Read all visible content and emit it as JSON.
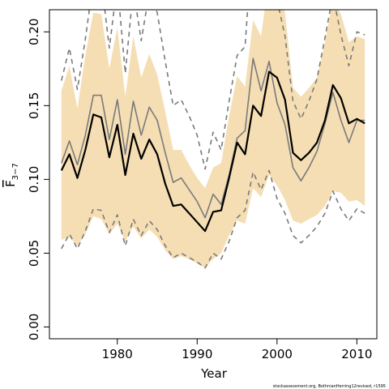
{
  "chart_data": {
    "type": "line",
    "xlabel": "Year",
    "ylabel_main": "F",
    "ylabel_sub": "3−7",
    "xlim": [
      1971.5,
      2012.5
    ],
    "ylim": [
      -0.008,
      0.215
    ],
    "xticks": [
      1980,
      1990,
      2000,
      2010
    ],
    "xtick_labels": [
      "1980",
      "1990",
      "2000",
      "2010"
    ],
    "yticks": [
      0.0,
      0.05,
      0.1,
      0.15,
      0.2
    ],
    "ytick_labels": [
      "0.00",
      "0.05",
      "0.10",
      "0.15",
      "0.20"
    ],
    "x": [
      1973,
      1974,
      1975,
      1976,
      1977,
      1978,
      1979,
      1980,
      1981,
      1982,
      1983,
      1984,
      1985,
      1986,
      1987,
      1988,
      1989,
      1990,
      1991,
      1992,
      1993,
      1994,
      1995,
      1996,
      1997,
      1998,
      1999,
      2000,
      2001,
      2002,
      2003,
      2004,
      2005,
      2006,
      2007,
      2008,
      2009,
      2010,
      2011
    ],
    "band": {
      "color": "#f5deb3",
      "upper": [
        0.16,
        0.177,
        0.148,
        0.184,
        0.213,
        0.212,
        0.175,
        0.203,
        0.156,
        0.197,
        0.169,
        0.185,
        0.171,
        0.146,
        0.12,
        0.12,
        0.11,
        0.101,
        0.094,
        0.108,
        0.111,
        0.143,
        0.17,
        0.163,
        0.208,
        0.197,
        0.237,
        0.232,
        0.213,
        0.162,
        0.156,
        0.162,
        0.169,
        0.193,
        0.222,
        0.212,
        0.193,
        0.197,
        0.195
      ],
      "lower": [
        0.059,
        0.061,
        0.055,
        0.063,
        0.075,
        0.073,
        0.063,
        0.07,
        0.058,
        0.068,
        0.06,
        0.066,
        0.061,
        0.052,
        0.046,
        0.048,
        0.046,
        0.043,
        0.04,
        0.046,
        0.05,
        0.062,
        0.072,
        0.07,
        0.094,
        0.088,
        0.103,
        0.096,
        0.086,
        0.072,
        0.07,
        0.073,
        0.076,
        0.082,
        0.092,
        0.091,
        0.085,
        0.086,
        0.082
      ]
    },
    "series": [
      {
        "color": "#000000",
        "width": 2.2,
        "dash": "",
        "values": [
          0.106,
          0.117,
          0.101,
          0.12,
          0.144,
          0.142,
          0.115,
          0.137,
          0.103,
          0.131,
          0.114,
          0.127,
          0.117,
          0.097,
          0.082,
          0.083,
          0.077,
          0.071,
          0.065,
          0.078,
          0.079,
          0.101,
          0.125,
          0.117,
          0.15,
          0.143,
          0.173,
          0.169,
          0.154,
          0.118,
          0.113,
          0.118,
          0.125,
          0.14,
          0.164,
          0.155,
          0.138,
          0.141,
          0.138
        ]
      },
      {
        "color": "#7a7a7a",
        "width": 1.6,
        "dash": "",
        "values": [
          0.111,
          0.126,
          0.11,
          0.13,
          0.157,
          0.157,
          0.127,
          0.154,
          0.117,
          0.153,
          0.13,
          0.149,
          0.14,
          0.118,
          0.098,
          0.101,
          0.093,
          0.085,
          0.074,
          0.09,
          0.083,
          0.103,
          0.128,
          0.133,
          0.182,
          0.16,
          0.18,
          0.152,
          0.137,
          0.108,
          0.099,
          0.108,
          0.119,
          0.138,
          0.159,
          0.14,
          0.125,
          0.14,
          0.14
        ]
      },
      {
        "color": "#7a7a7a",
        "width": 1.6,
        "dash": "6,5",
        "values": [
          0.167,
          0.189,
          0.161,
          0.195,
          0.235,
          0.235,
          0.189,
          0.233,
          0.172,
          0.229,
          0.194,
          0.227,
          0.213,
          0.18,
          0.15,
          0.154,
          0.143,
          0.13,
          0.107,
          0.132,
          0.12,
          0.153,
          0.184,
          0.19,
          0.268,
          0.221,
          0.262,
          0.222,
          0.197,
          0.153,
          0.141,
          0.153,
          0.168,
          0.196,
          0.225,
          0.198,
          0.177,
          0.2,
          0.198
        ]
      },
      {
        "color": "#7a7a7a",
        "width": 1.6,
        "dash": "6,5",
        "values": [
          0.053,
          0.063,
          0.053,
          0.065,
          0.08,
          0.079,
          0.064,
          0.076,
          0.055,
          0.073,
          0.062,
          0.072,
          0.066,
          0.055,
          0.047,
          0.05,
          0.047,
          0.044,
          0.04,
          0.05,
          0.046,
          0.058,
          0.074,
          0.079,
          0.105,
          0.093,
          0.106,
          0.087,
          0.077,
          0.062,
          0.057,
          0.062,
          0.068,
          0.077,
          0.092,
          0.08,
          0.072,
          0.08,
          0.077
        ]
      }
    ]
  },
  "footnote": "stockassessment.org, BothnianHerring12revised, r1595"
}
